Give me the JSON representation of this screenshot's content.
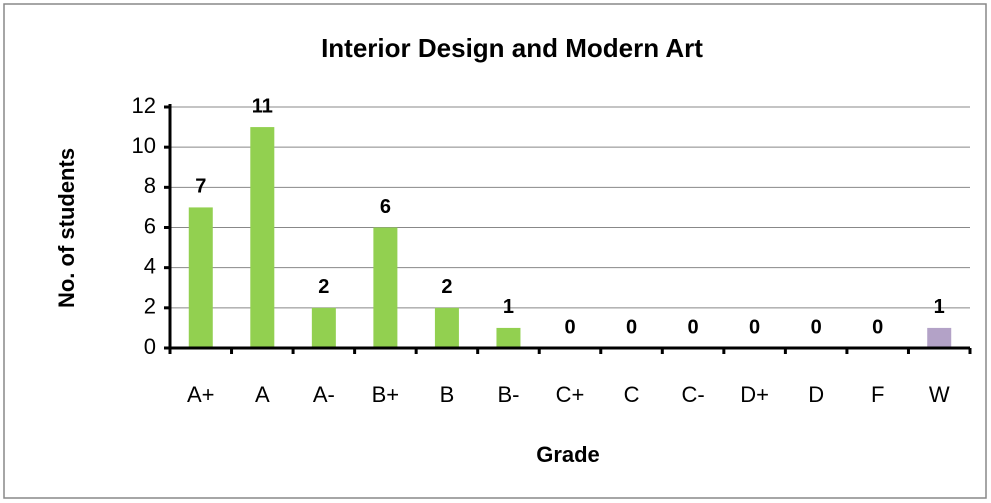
{
  "chart_data": {
    "type": "bar",
    "title": "Interior Design and Modern Art",
    "xlabel": "Grade",
    "ylabel": "No. of students",
    "categories": [
      "A+",
      "A",
      "A-",
      "B+",
      "B",
      "B-",
      "C+",
      "C",
      "C-",
      "D+",
      "D",
      "F",
      "W"
    ],
    "values": [
      7,
      11,
      2,
      6,
      2,
      1,
      0,
      0,
      0,
      0,
      0,
      0,
      1
    ],
    "colors": [
      "#92d050",
      "#92d050",
      "#92d050",
      "#92d050",
      "#92d050",
      "#92d050",
      "#92d050",
      "#92d050",
      "#92d050",
      "#92d050",
      "#92d050",
      "#92d050",
      "#b3a2c7"
    ],
    "ylim": [
      0,
      12
    ],
    "yticks": [
      0,
      2,
      4,
      6,
      8,
      10,
      12
    ],
    "grid": true
  }
}
